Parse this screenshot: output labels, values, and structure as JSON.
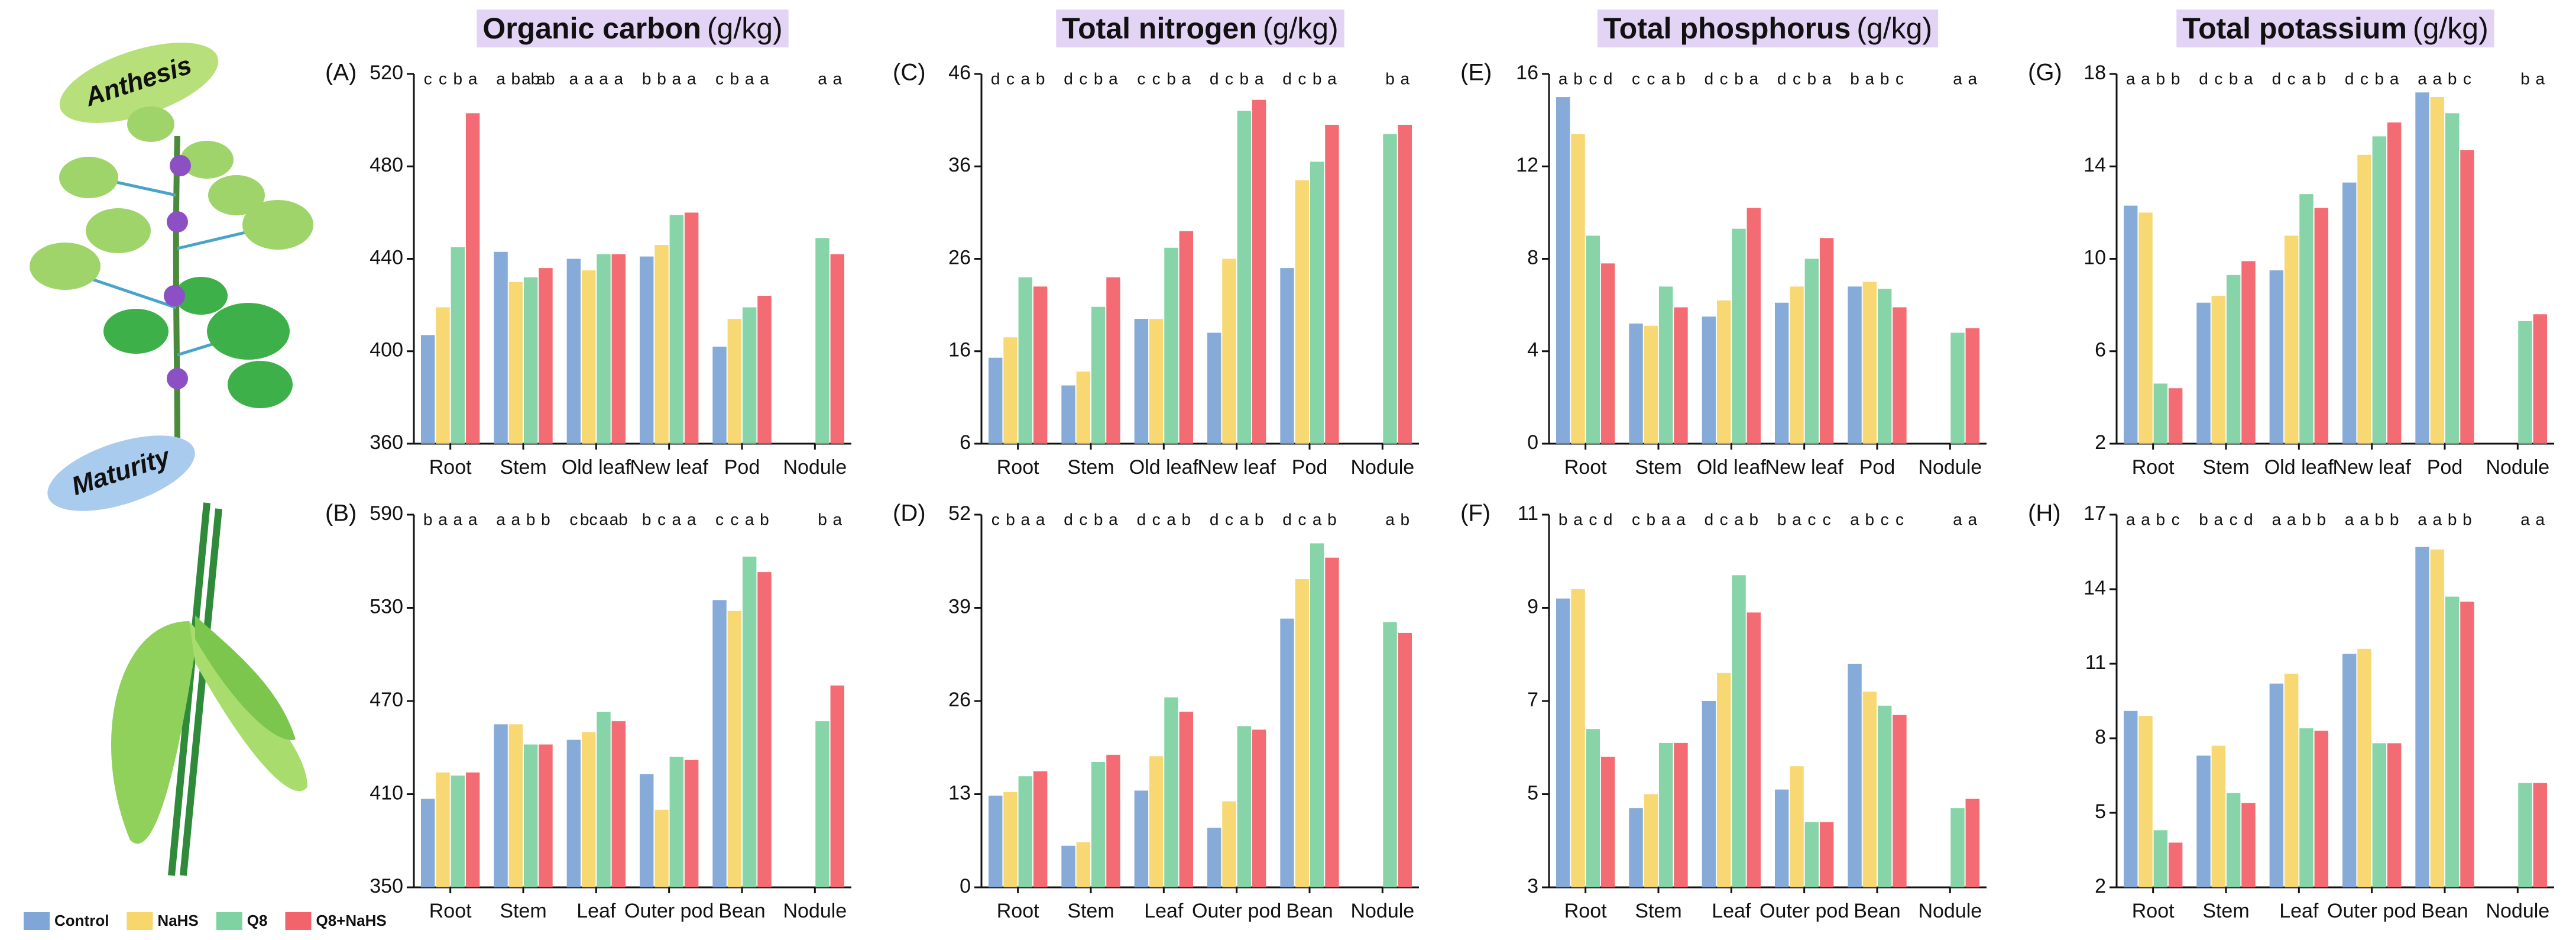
{
  "stages": [
    "Anthesis",
    "Maturity"
  ],
  "legend": [
    {
      "name": "Control",
      "color": "#7fa6d6"
    },
    {
      "name": "NaHS",
      "color": "#f7d66c"
    },
    {
      "name": "Q8",
      "color": "#7fd2a2"
    },
    {
      "name": "Q8+NaHS",
      "color": "#f2646b"
    }
  ],
  "chart_data": [
    {
      "type": "bar",
      "label": "(A)",
      "title": "Organic carbon",
      "unit": "(g/kg)",
      "categories": [
        "Root",
        "Stem",
        "Old leaf",
        "New leaf",
        "Pod",
        "Nodule"
      ],
      "ylim": [
        360,
        520
      ],
      "yticks": [
        360,
        400,
        440,
        480,
        520
      ],
      "series": [
        {
          "values": [
            407,
            443,
            440,
            441,
            402,
            null
          ],
          "letters": [
            "c",
            "a",
            "a",
            "b",
            "c",
            null
          ]
        },
        {
          "values": [
            419,
            430,
            435,
            446,
            414,
            null
          ],
          "letters": [
            "c",
            "b",
            "a",
            "b",
            "b",
            null
          ]
        },
        {
          "values": [
            445,
            432,
            442,
            459,
            419,
            449
          ],
          "letters": [
            "b",
            "ab",
            "a",
            "a",
            "a",
            "a"
          ]
        },
        {
          "values": [
            503,
            436,
            442,
            460,
            424,
            442
          ],
          "letters": [
            "a",
            "ab",
            "a",
            "a",
            "a",
            "a"
          ]
        }
      ]
    },
    {
      "type": "bar",
      "label": "(B)",
      "categories": [
        "Root",
        "Stem",
        "Leaf",
        "Outer pod",
        "Bean",
        "Nodule"
      ],
      "ylim": [
        350,
        590
      ],
      "yticks": [
        350,
        410,
        470,
        530,
        590
      ],
      "series": [
        {
          "values": [
            407,
            455,
            445,
            423,
            535,
            null
          ],
          "letters": [
            "b",
            "a",
            "c",
            "b",
            "c",
            null
          ]
        },
        {
          "values": [
            424,
            455,
            450,
            400,
            528,
            null
          ],
          "letters": [
            "a",
            "a",
            "bc",
            "c",
            "c",
            null
          ]
        },
        {
          "values": [
            422,
            442,
            463,
            434,
            563,
            457
          ],
          "letters": [
            "a",
            "b",
            "a",
            "a",
            "a",
            "b"
          ]
        },
        {
          "values": [
            424,
            442,
            457,
            432,
            553,
            480
          ],
          "letters": [
            "a",
            "b",
            "ab",
            "a",
            "b",
            "a"
          ]
        }
      ]
    },
    {
      "type": "bar",
      "label": "(C)",
      "title": "Total nitrogen",
      "unit": "(g/kg)",
      "categories": [
        "Root",
        "Stem",
        "Old leaf",
        "New leaf",
        "Pod",
        "Nodule"
      ],
      "ylim": [
        6,
        46
      ],
      "yticks": [
        6,
        16,
        26,
        36,
        46
      ],
      "series": [
        {
          "values": [
            15.3,
            12.3,
            19.5,
            18,
            25,
            null
          ],
          "letters": [
            "d",
            "d",
            "c",
            "d",
            "d",
            null
          ]
        },
        {
          "values": [
            17.5,
            13.8,
            19.5,
            26,
            34.5,
            null
          ],
          "letters": [
            "c",
            "c",
            "c",
            "c",
            "c",
            null
          ]
        },
        {
          "values": [
            24,
            20.8,
            27.2,
            42,
            36.5,
            39.5
          ],
          "letters": [
            "a",
            "b",
            "b",
            "b",
            "b",
            "b"
          ]
        },
        {
          "values": [
            23,
            24,
            29,
            43.2,
            40.5,
            40.5
          ],
          "letters": [
            "b",
            "a",
            "a",
            "a",
            "a",
            "a"
          ]
        }
      ]
    },
    {
      "type": "bar",
      "label": "(D)",
      "categories": [
        "Root",
        "Stem",
        "Leaf",
        "Outer pod",
        "Bean",
        "Nodule"
      ],
      "ylim": [
        0,
        52
      ],
      "yticks": [
        0,
        13,
        26,
        39,
        52
      ],
      "series": [
        {
          "values": [
            12.8,
            5.8,
            13.5,
            8.3,
            37.5,
            null
          ],
          "letters": [
            "c",
            "d",
            "d",
            "d",
            "d",
            null
          ]
        },
        {
          "values": [
            13.3,
            6.3,
            18.3,
            12,
            43,
            null
          ],
          "letters": [
            "b",
            "c",
            "c",
            "c",
            "c",
            null
          ]
        },
        {
          "values": [
            15.5,
            17.5,
            26.5,
            22.5,
            48,
            37
          ],
          "letters": [
            "a",
            "b",
            "a",
            "a",
            "a",
            "a"
          ]
        },
        {
          "values": [
            16.2,
            18.5,
            24.5,
            22,
            46,
            35.5
          ],
          "letters": [
            "a",
            "a",
            "b",
            "b",
            "b",
            "b"
          ]
        }
      ]
    },
    {
      "type": "bar",
      "label": "(E)",
      "title": "Total phosphorus",
      "unit": "(g/kg)",
      "categories": [
        "Root",
        "Stem",
        "Old leaf",
        "New leaf",
        "Pod",
        "Nodule"
      ],
      "ylim": [
        0,
        16
      ],
      "yticks": [
        0,
        4,
        8,
        12,
        16
      ],
      "series": [
        {
          "values": [
            15,
            5.2,
            5.5,
            6.1,
            6.8,
            null
          ],
          "letters": [
            "a",
            "c",
            "d",
            "d",
            "b",
            null
          ]
        },
        {
          "values": [
            13.4,
            5.1,
            6.2,
            6.8,
            7.0,
            null
          ],
          "letters": [
            "b",
            "c",
            "c",
            "c",
            "a",
            null
          ]
        },
        {
          "values": [
            9,
            6.8,
            9.3,
            8.0,
            6.7,
            4.8
          ],
          "letters": [
            "c",
            "a",
            "b",
            "b",
            "b",
            "a"
          ]
        },
        {
          "values": [
            7.8,
            5.9,
            10.2,
            8.9,
            5.9,
            5.0
          ],
          "letters": [
            "d",
            "b",
            "a",
            "a",
            "c",
            "a"
          ]
        }
      ]
    },
    {
      "type": "bar",
      "label": "(F)",
      "categories": [
        "Root",
        "Stem",
        "Leaf",
        "Outer pod",
        "Bean",
        "Nodule"
      ],
      "ylim": [
        3,
        11
      ],
      "yticks": [
        3,
        5,
        7,
        9,
        11
      ],
      "series": [
        {
          "values": [
            9.2,
            4.7,
            7.0,
            5.1,
            7.8,
            null
          ],
          "letters": [
            "b",
            "c",
            "d",
            "b",
            "a",
            null
          ]
        },
        {
          "values": [
            9.4,
            5.0,
            7.6,
            5.6,
            7.2,
            null
          ],
          "letters": [
            "a",
            "b",
            "c",
            "a",
            "b",
            null
          ]
        },
        {
          "values": [
            6.4,
            6.1,
            9.7,
            4.4,
            6.9,
            4.7
          ],
          "letters": [
            "c",
            "a",
            "a",
            "c",
            "c",
            "a"
          ]
        },
        {
          "values": [
            5.8,
            6.1,
            8.9,
            4.4,
            6.7,
            4.9
          ],
          "letters": [
            "d",
            "a",
            "b",
            "c",
            "c",
            "a"
          ]
        }
      ]
    },
    {
      "type": "bar",
      "label": "(G)",
      "title": "Total potassium",
      "unit": "(g/kg)",
      "categories": [
        "Root",
        "Stem",
        "Old leaf",
        "New leaf",
        "Pod",
        "Nodule"
      ],
      "ylim": [
        2,
        18
      ],
      "yticks": [
        2,
        6,
        10,
        14,
        18
      ],
      "series": [
        {
          "values": [
            12.3,
            8.1,
            9.5,
            13.3,
            17.2,
            null
          ],
          "letters": [
            "a",
            "d",
            "d",
            "d",
            "a",
            null
          ]
        },
        {
          "values": [
            12.0,
            8.4,
            11,
            14.5,
            17.0,
            null
          ],
          "letters": [
            "a",
            "c",
            "c",
            "c",
            "a",
            null
          ]
        },
        {
          "values": [
            4.6,
            9.3,
            12.8,
            15.3,
            16.3,
            7.3
          ],
          "letters": [
            "b",
            "b",
            "a",
            "b",
            "b",
            "b"
          ]
        },
        {
          "values": [
            4.4,
            9.9,
            12.2,
            15.9,
            14.7,
            7.6
          ],
          "letters": [
            "b",
            "a",
            "b",
            "a",
            "c",
            "a"
          ]
        }
      ]
    },
    {
      "type": "bar",
      "label": "(H)",
      "categories": [
        "Root",
        "Stem",
        "Leaf",
        "Outer pod",
        "Bean",
        "Nodule"
      ],
      "ylim": [
        2,
        17
      ],
      "yticks": [
        2,
        5,
        8,
        11,
        14,
        17
      ],
      "series": [
        {
          "values": [
            9.1,
            7.3,
            10.2,
            11.4,
            15.7,
            null
          ],
          "letters": [
            "a",
            "b",
            "a",
            "a",
            "a",
            null
          ]
        },
        {
          "values": [
            8.9,
            7.7,
            10.6,
            11.6,
            15.6,
            null
          ],
          "letters": [
            "a",
            "a",
            "a",
            "a",
            "a",
            null
          ]
        },
        {
          "values": [
            4.3,
            5.8,
            8.4,
            7.8,
            13.7,
            6.2
          ],
          "letters": [
            "b",
            "c",
            "b",
            "b",
            "b",
            "a"
          ]
        },
        {
          "values": [
            3.8,
            5.4,
            8.3,
            7.8,
            13.5,
            6.2
          ],
          "letters": [
            "c",
            "d",
            "b",
            "b",
            "b",
            "a"
          ]
        }
      ]
    }
  ]
}
